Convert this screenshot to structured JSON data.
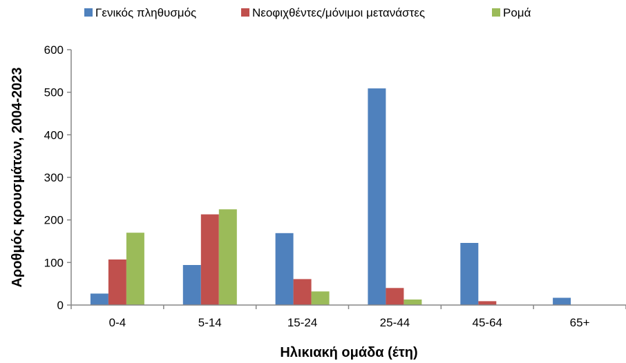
{
  "chart_data": {
    "type": "bar",
    "categories": [
      "0-4",
      "5-14",
      "15-24",
      "25-44",
      "45-64",
      "65+"
    ],
    "series": [
      {
        "name": "Γενικός πληθυσμός",
        "color": "#4F81BD",
        "values": [
          27,
          94,
          169,
          509,
          146,
          17
        ]
      },
      {
        "name": "Νεοφιχθέντες/μόνιμοι μετανάστες",
        "color": "#C0504D",
        "values": [
          107,
          213,
          61,
          40,
          9,
          0
        ]
      },
      {
        "name": "Ρομά",
        "color": "#9BBB59",
        "values": [
          170,
          225,
          32,
          13,
          0,
          0
        ]
      }
    ],
    "title": "",
    "xlabel": "Ηλικιακή ομάδα (έτη)",
    "ylabel": "Αροθμός κρουσμάτων, 2004-2023",
    "ylim": [
      0,
      600
    ],
    "yticks": [
      0,
      100,
      200,
      300,
      400,
      500,
      600
    ],
    "grid": false,
    "legend_position": "top"
  }
}
